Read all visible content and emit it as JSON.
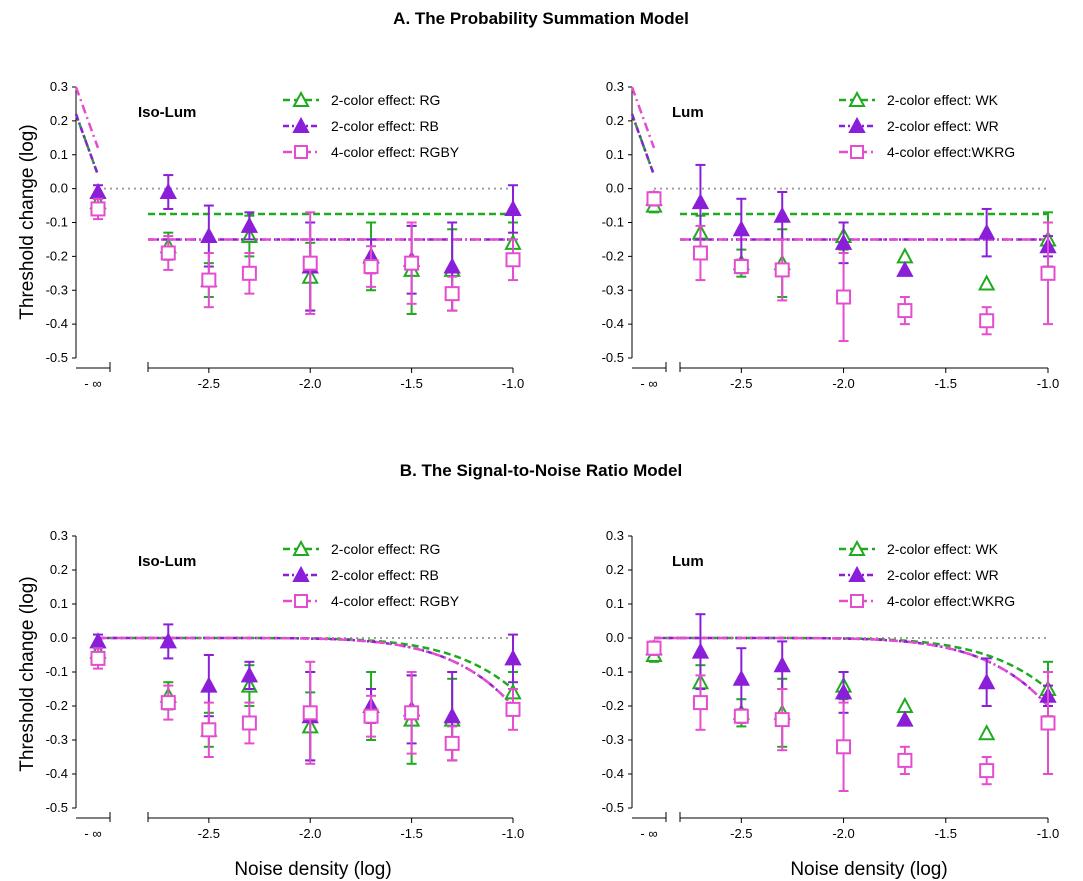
{
  "sections": [
    {
      "title": "A. The Probability Summation Model"
    },
    {
      "title": "B. The Signal-to-Noise Ratio Model"
    }
  ],
  "ylabel": "Threshold change (log)",
  "xlabel": "Noise density (log)",
  "neg_inf_label": "- ∞",
  "colors": {
    "green": "#1faa1f",
    "purple": "#8b1fd9",
    "pink": "#e64ccf",
    "ref": "#a0a0a0"
  },
  "chart_data": [
    {
      "type": "scatter",
      "section": "A",
      "panel_label": "Iso-Lum",
      "xticks": [
        "-2.5",
        "-2.0",
        "-1.5",
        "-1.0"
      ],
      "yticks": [
        "0.3",
        "0.2",
        "0.1",
        "0.0",
        "-0.1",
        "-0.2",
        "-0.3",
        "-0.4",
        "-0.5"
      ],
      "ylim": [
        -0.5,
        0.3
      ],
      "xlim": [
        -2.8,
        -1.0
      ],
      "legend": [
        "2-color effect: RG",
        "2-color effect: RB",
        "4-color effect: RGBY"
      ],
      "series": [
        {
          "name": "2-color effect: RG",
          "marker": "open-triangle",
          "baseline": {
            "y": -0.04,
            "err": 0.01
          },
          "x": [
            -2.7,
            -2.5,
            -2.3,
            -2.0,
            -1.7,
            -1.5,
            -1.3,
            -1.0
          ],
          "y": [
            -0.17,
            -0.27,
            -0.14,
            -0.26,
            -0.2,
            -0.24,
            -0.24,
            -0.16
          ],
          "err": [
            0.04,
            0.05,
            0.06,
            0.1,
            0.1,
            0.13,
            0.12,
            0.06
          ],
          "model": {
            "kind": "flat",
            "level": -0.075
          }
        },
        {
          "name": "2-color effect: RB",
          "marker": "filled-triangle",
          "baseline": {
            "y": -0.01,
            "err": 0.02
          },
          "x": [
            -2.7,
            -2.5,
            -2.3,
            -2.0,
            -1.7,
            -1.5,
            -1.3,
            -1.0
          ],
          "y": [
            -0.01,
            -0.14,
            -0.11,
            -0.23,
            -0.2,
            -0.21,
            -0.23,
            -0.06
          ],
          "err": [
            0.05,
            0.09,
            0.04,
            0.13,
            0.05,
            0.1,
            0.13,
            0.07
          ],
          "model": {
            "kind": "flat",
            "level": -0.15
          }
        },
        {
          "name": "4-color effect: RGBY",
          "marker": "open-square",
          "baseline": {
            "y": -0.06,
            "err": 0.03
          },
          "x": [
            -2.7,
            -2.5,
            -2.3,
            -2.0,
            -1.7,
            -1.5,
            -1.3,
            -1.0
          ],
          "y": [
            -0.19,
            -0.27,
            -0.25,
            -0.22,
            -0.23,
            -0.22,
            -0.31,
            -0.21
          ],
          "err": [
            0.05,
            0.08,
            0.06,
            0.15,
            0.06,
            0.12,
            0.05,
            0.06
          ],
          "model": {
            "kind": "flat",
            "level": -0.15
          }
        }
      ]
    },
    {
      "type": "scatter",
      "section": "A",
      "panel_label": "Lum",
      "xticks": [
        "-2.5",
        "-2.0",
        "-1.5",
        "-1.0"
      ],
      "yticks": [
        "0.3",
        "0.2",
        "0.1",
        "0.0",
        "-0.1",
        "-0.2",
        "-0.3",
        "-0.4",
        "-0.5"
      ],
      "ylim": [
        -0.5,
        0.3
      ],
      "xlim": [
        -2.8,
        -1.0
      ],
      "legend": [
        "2-color effect: WK",
        "2-color effect: WR",
        "4-color effect:WKRG"
      ],
      "series": [
        {
          "name": "2-color effect: WK",
          "marker": "open-triangle",
          "baseline": {
            "y": -0.05,
            "err": 0.02
          },
          "x": [
            -2.7,
            -2.5,
            -2.3,
            -2.0,
            -1.7,
            -1.3,
            -1.0
          ],
          "y": [
            -0.13,
            -0.22,
            -0.22,
            -0.14,
            -0.2,
            -0.28,
            -0.15
          ],
          "err": [
            0.05,
            0.04,
            0.1,
            0.04,
            0.0,
            0.0,
            0.08
          ],
          "model": {
            "kind": "flat",
            "level": -0.075
          }
        },
        {
          "name": "2-color effect: WR",
          "marker": "filled-triangle",
          "baseline": {
            "y": -0.03,
            "err": 0.01
          },
          "x": [
            -2.7,
            -2.5,
            -2.3,
            -2.0,
            -1.7,
            -1.3,
            -1.0
          ],
          "y": [
            -0.04,
            -0.12,
            -0.08,
            -0.16,
            -0.24,
            -0.13,
            -0.17
          ],
          "err": [
            0.11,
            0.09,
            0.07,
            0.06,
            0.0,
            0.07,
            0.03
          ],
          "model": {
            "kind": "flat",
            "level": -0.15
          }
        },
        {
          "name": "4-color effect:WKRG",
          "marker": "open-square",
          "baseline": {
            "y": -0.03,
            "err": 0.02
          },
          "x": [
            -2.7,
            -2.5,
            -2.3,
            -2.0,
            -1.7,
            -1.3,
            -1.0
          ],
          "y": [
            -0.19,
            -0.23,
            -0.24,
            -0.32,
            -0.36,
            -0.39,
            -0.25
          ],
          "err": [
            0.08,
            0.02,
            0.09,
            0.13,
            0.04,
            0.04,
            0.15
          ],
          "model": {
            "kind": "flat",
            "level": -0.15
          }
        }
      ]
    },
    {
      "type": "scatter",
      "section": "B",
      "panel_label": "Iso-Lum",
      "xticks": [
        "-2.5",
        "-2.0",
        "-1.5",
        "-1.0"
      ],
      "yticks": [
        "0.3",
        "0.2",
        "0.1",
        "0.0",
        "-0.1",
        "-0.2",
        "-0.3",
        "-0.4",
        "-0.5"
      ],
      "ylim": [
        -0.5,
        0.3
      ],
      "xlim": [
        -2.8,
        -1.0
      ],
      "legend": [
        "2-color effect: RG",
        "2-color effect: RB",
        "4-color effect: RGBY"
      ],
      "series": [
        {
          "name": "2-color effect: RG",
          "marker": "open-triangle",
          "baseline": {
            "y": -0.04,
            "err": 0.01
          },
          "x": [
            -2.7,
            -2.5,
            -2.3,
            -2.0,
            -1.7,
            -1.5,
            -1.3,
            -1.0
          ],
          "y": [
            -0.17,
            -0.27,
            -0.14,
            -0.26,
            -0.2,
            -0.24,
            -0.24,
            -0.16
          ],
          "err": [
            0.04,
            0.05,
            0.06,
            0.1,
            0.1,
            0.13,
            0.12,
            0.06
          ],
          "model": {
            "kind": "curve",
            "end": -0.15
          }
        },
        {
          "name": "2-color effect: RB",
          "marker": "filled-triangle",
          "baseline": {
            "y": -0.01,
            "err": 0.02
          },
          "x": [
            -2.7,
            -2.5,
            -2.3,
            -2.0,
            -1.7,
            -1.5,
            -1.3,
            -1.0
          ],
          "y": [
            -0.01,
            -0.14,
            -0.11,
            -0.23,
            -0.2,
            -0.21,
            -0.23,
            -0.06
          ],
          "err": [
            0.05,
            0.09,
            0.04,
            0.13,
            0.05,
            0.1,
            0.13,
            0.07
          ],
          "model": {
            "kind": "curve",
            "end": -0.2
          }
        },
        {
          "name": "4-color effect: RGBY",
          "marker": "open-square",
          "baseline": {
            "y": -0.06,
            "err": 0.03
          },
          "x": [
            -2.7,
            -2.5,
            -2.3,
            -2.0,
            -1.7,
            -1.5,
            -1.3,
            -1.0
          ],
          "y": [
            -0.19,
            -0.27,
            -0.25,
            -0.22,
            -0.23,
            -0.22,
            -0.31,
            -0.21
          ],
          "err": [
            0.05,
            0.08,
            0.06,
            0.15,
            0.06,
            0.12,
            0.05,
            0.06
          ],
          "model": {
            "kind": "curve",
            "end": -0.2
          }
        }
      ]
    },
    {
      "type": "scatter",
      "section": "B",
      "panel_label": "Lum",
      "xticks": [
        "-2.5",
        "-2.0",
        "-1.5",
        "-1.0"
      ],
      "yticks": [
        "0.3",
        "0.2",
        "0.1",
        "0.0",
        "-0.1",
        "-0.2",
        "-0.3",
        "-0.4",
        "-0.5"
      ],
      "ylim": [
        -0.5,
        0.3
      ],
      "xlim": [
        -2.8,
        -1.0
      ],
      "legend": [
        "2-color effect: WK",
        "2-color effect: WR",
        "4-color effect:WKRG"
      ],
      "series": [
        {
          "name": "2-color effect: WK",
          "marker": "open-triangle",
          "baseline": {
            "y": -0.05,
            "err": 0.02
          },
          "x": [
            -2.7,
            -2.5,
            -2.3,
            -2.0,
            -1.7,
            -1.3,
            -1.0
          ],
          "y": [
            -0.13,
            -0.22,
            -0.22,
            -0.14,
            -0.2,
            -0.28,
            -0.15
          ],
          "err": [
            0.05,
            0.04,
            0.1,
            0.04,
            0.0,
            0.0,
            0.08
          ],
          "model": {
            "kind": "curve",
            "end": -0.15
          }
        },
        {
          "name": "2-color effect: WR",
          "marker": "filled-triangle",
          "baseline": {
            "y": -0.03,
            "err": 0.01
          },
          "x": [
            -2.7,
            -2.5,
            -2.3,
            -2.0,
            -1.7,
            -1.3,
            -1.0
          ],
          "y": [
            -0.04,
            -0.12,
            -0.08,
            -0.16,
            -0.24,
            -0.13,
            -0.17
          ],
          "err": [
            0.11,
            0.09,
            0.07,
            0.06,
            0.0,
            0.07,
            0.03
          ],
          "model": {
            "kind": "curve",
            "end": -0.2
          }
        },
        {
          "name": "4-color effect:WKRG",
          "marker": "open-square",
          "baseline": {
            "y": -0.03,
            "err": 0.02
          },
          "x": [
            -2.7,
            -2.5,
            -2.3,
            -2.0,
            -1.7,
            -1.3,
            -1.0
          ],
          "y": [
            -0.19,
            -0.23,
            -0.24,
            -0.32,
            -0.36,
            -0.39,
            -0.25
          ],
          "err": [
            0.08,
            0.02,
            0.09,
            0.13,
            0.04,
            0.04,
            0.15
          ],
          "model": {
            "kind": "curve",
            "end": -0.2
          }
        }
      ]
    }
  ]
}
